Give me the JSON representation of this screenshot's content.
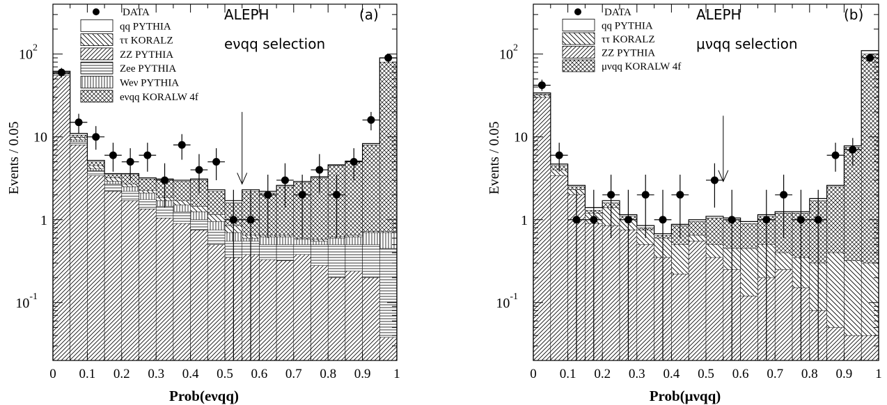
{
  "chart_data": [
    {
      "type": "histogram",
      "panel_label": "(a)",
      "experiment": "ALEPH",
      "selection": "eνqq selection",
      "xlabel": "Prob(eνqq)",
      "ylabel": "Events / 0.05",
      "yscale": "log",
      "xlim": [
        0,
        1
      ],
      "ylim": [
        0.02,
        400
      ],
      "x_ticks": [
        "0",
        "0.1",
        "0.2",
        "0.3",
        "0.4",
        "0.5",
        "0.6",
        "0.7",
        "0.8",
        "0.9",
        "1"
      ],
      "cut_value": 0.55,
      "bin_edges": [
        0,
        0.05,
        0.1,
        0.15,
        0.2,
        0.25,
        0.3,
        0.35,
        0.4,
        0.45,
        0.5,
        0.55,
        0.6,
        0.65,
        0.7,
        0.75,
        0.8,
        0.85,
        0.9,
        0.95,
        1.0
      ],
      "legend": [
        {
          "label": "DATA",
          "style": "dot"
        },
        {
          "label": "qq PYTHIA",
          "style": "blank"
        },
        {
          "label": "ττ KORALZ",
          "style": "diag-back"
        },
        {
          "label": "ZZ PYTHIA",
          "style": "diag-fwd"
        },
        {
          "label": "Zee PYTHIA",
          "style": "horiz"
        },
        {
          "label": "Weν PYTHIA",
          "style": "vert"
        },
        {
          "label": "eνqq KORALW 4f",
          "style": "cross"
        }
      ],
      "stack": [
        {
          "style": "diag-fwd",
          "cum": [
            55,
            8,
            3.4,
            2.2,
            1.7,
            1.35,
            1.05,
            0.9,
            0.75,
            0.5,
            0.35,
            0.38,
            0.33,
            0.32,
            0.38,
            0.28,
            0.2,
            0.24,
            0.2,
            0.038
          ]
        },
        {
          "style": "horiz",
          "cum": [
            57,
            8.7,
            3.9,
            2.7,
            2.2,
            1.75,
            1.45,
            1.25,
            1.0,
            0.75,
            0.55,
            0.55,
            0.5,
            0.5,
            0.5,
            0.5,
            0.5,
            0.5,
            0.5,
            0.45
          ]
        },
        {
          "style": "vert",
          "cum": [
            58,
            9.2,
            4.1,
            2.9,
            2.5,
            2.1,
            1.7,
            1.5,
            1.25,
            0.95,
            0.7,
            0.6,
            0.62,
            0.62,
            0.58,
            0.55,
            0.6,
            0.62,
            0.7,
            0.7
          ]
        },
        {
          "style": "diag-back",
          "cum": [
            59,
            9.8,
            4.5,
            3.2,
            2.7,
            2.25,
            1.85,
            1.7,
            1.45,
            1.15,
            0.85,
            0.65,
            0.65,
            0.65,
            0.6,
            0.58,
            0.62,
            0.65,
            0.72,
            0.72
          ]
        },
        {
          "style": "cross",
          "cum": [
            60,
            10.5,
            5.0,
            3.5,
            3.5,
            3.1,
            3.0,
            2.9,
            3.0,
            2.2,
            1.6,
            2.2,
            2.1,
            2.5,
            2.8,
            3.2,
            4.5,
            5.0,
            8.0,
            80
          ]
        },
        {
          "style": "blank",
          "cum": [
            62,
            11,
            5.2,
            3.6,
            3.6,
            3.2,
            3.1,
            3.0,
            3.1,
            2.3,
            1.7,
            2.3,
            2.2,
            2.6,
            2.9,
            3.3,
            4.6,
            5.1,
            8.3,
            90
          ]
        }
      ],
      "data_points": [
        {
          "x": 0.025,
          "y": 60,
          "lo": 52,
          "hi": 68
        },
        {
          "x": 0.075,
          "y": 15,
          "lo": 11,
          "hi": 19
        },
        {
          "x": 0.125,
          "y": 10,
          "lo": 7,
          "hi": 13.5
        },
        {
          "x": 0.175,
          "y": 6,
          "lo": 3.8,
          "hi": 8.5
        },
        {
          "x": 0.225,
          "y": 5,
          "lo": 3,
          "hi": 7.3
        },
        {
          "x": 0.275,
          "y": 6,
          "lo": 3.8,
          "hi": 8.5
        },
        {
          "x": 0.325,
          "y": 3,
          "lo": 1.4,
          "hi": 4.8
        },
        {
          "x": 0.375,
          "y": 8,
          "lo": 5.3,
          "hi": 10.8
        },
        {
          "x": 0.425,
          "y": 4,
          "lo": 2.1,
          "hi": 6.2
        },
        {
          "x": 0.475,
          "y": 5,
          "lo": 3,
          "hi": 7.3
        },
        {
          "x": 0.525,
          "y": 1,
          "lo": 0.02,
          "hi": 2.3
        },
        {
          "x": 0.575,
          "y": 1,
          "lo": 0.02,
          "hi": 2.3
        },
        {
          "x": 0.625,
          "y": 2,
          "lo": 0.6,
          "hi": 3.5
        },
        {
          "x": 0.675,
          "y": 3,
          "lo": 1.4,
          "hi": 4.8
        },
        {
          "x": 0.725,
          "y": 2,
          "lo": 0.6,
          "hi": 3.5
        },
        {
          "x": 0.775,
          "y": 4,
          "lo": 2.1,
          "hi": 6.2
        },
        {
          "x": 0.825,
          "y": 2,
          "lo": 0.6,
          "hi": 3.5
        },
        {
          "x": 0.875,
          "y": 5,
          "lo": 3,
          "hi": 7.3
        },
        {
          "x": 0.925,
          "y": 16,
          "lo": 12,
          "hi": 20
        },
        {
          "x": 0.975,
          "y": 90,
          "lo": 80,
          "hi": 100
        }
      ]
    },
    {
      "type": "histogram",
      "panel_label": "(b)",
      "experiment": "ALEPH",
      "selection": "μνqq selection",
      "xlabel": "Prob(μνqq)",
      "ylabel": "Events / 0.05",
      "yscale": "log",
      "xlim": [
        0,
        1
      ],
      "ylim": [
        0.02,
        400
      ],
      "x_ticks": [
        "0",
        "0.1",
        "0.2",
        "0.3",
        "0.4",
        "0.5",
        "0.6",
        "0.7",
        "0.8",
        "0.9",
        "1"
      ],
      "cut_value": 0.55,
      "bin_edges": [
        0,
        0.05,
        0.1,
        0.15,
        0.2,
        0.25,
        0.3,
        0.35,
        0.4,
        0.45,
        0.5,
        0.55,
        0.6,
        0.65,
        0.7,
        0.75,
        0.8,
        0.85,
        0.9,
        0.95,
        1.0
      ],
      "legend": [
        {
          "label": "DATA",
          "style": "dot"
        },
        {
          "label": "qq PYTHIA",
          "style": "blank"
        },
        {
          "label": "ττ KORALZ",
          "style": "diag-back"
        },
        {
          "label": "ZZ PYTHIA",
          "style": "diag-fwd"
        },
        {
          "label": "μνqq KORALW 4f",
          "style": "cross"
        }
      ],
      "stack": [
        {
          "style": "diag-fwd",
          "cum": [
            30,
            3.4,
            2.0,
            0.9,
            0.85,
            0.75,
            0.5,
            0.35,
            0.22,
            0.55,
            0.35,
            0.25,
            0.12,
            0.2,
            0.25,
            0.15,
            0.08,
            0.05,
            0.04,
            0.04
          ]
        },
        {
          "style": "diag-back",
          "cum": [
            32,
            4.0,
            2.3,
            1.2,
            1.4,
            1.0,
            0.75,
            0.6,
            0.5,
            0.65,
            0.5,
            0.45,
            0.45,
            0.5,
            0.4,
            0.35,
            0.3,
            0.4,
            0.32,
            0.3
          ]
        },
        {
          "style": "cross",
          "cum": [
            33,
            4.5,
            2.5,
            1.3,
            1.6,
            1.1,
            0.8,
            0.65,
            0.85,
            0.95,
            1.05,
            1.0,
            0.9,
            1.1,
            1.2,
            1.2,
            1.7,
            2.5,
            7.5,
            100
          ]
        },
        {
          "style": "blank",
          "cum": [
            34,
            4.7,
            2.6,
            1.4,
            1.7,
            1.15,
            0.85,
            0.68,
            0.88,
            1.0,
            1.1,
            1.05,
            0.95,
            1.15,
            1.25,
            1.25,
            1.8,
            2.6,
            7.8,
            110
          ]
        }
      ],
      "data_points": [
        {
          "x": 0.025,
          "y": 42,
          "lo": 36,
          "hi": 49
        },
        {
          "x": 0.075,
          "y": 6,
          "lo": 3.8,
          "hi": 8.5
        },
        {
          "x": 0.125,
          "y": 1,
          "lo": 0.02,
          "hi": 2.3
        },
        {
          "x": 0.175,
          "y": 1,
          "lo": 0.02,
          "hi": 2.3
        },
        {
          "x": 0.225,
          "y": 2,
          "lo": 0.6,
          "hi": 3.5
        },
        {
          "x": 0.275,
          "y": 1,
          "lo": 0.02,
          "hi": 2.3
        },
        {
          "x": 0.325,
          "y": 2,
          "lo": 0.6,
          "hi": 3.5
        },
        {
          "x": 0.375,
          "y": 1,
          "lo": 0.02,
          "hi": 2.3
        },
        {
          "x": 0.425,
          "y": 2,
          "lo": 0.6,
          "hi": 3.5
        },
        {
          "x": 0.525,
          "y": 3,
          "lo": 1.4,
          "hi": 4.8
        },
        {
          "x": 0.575,
          "y": 1,
          "lo": 0.02,
          "hi": 2.3
        },
        {
          "x": 0.675,
          "y": 1,
          "lo": 0.02,
          "hi": 2.3
        },
        {
          "x": 0.725,
          "y": 2,
          "lo": 0.6,
          "hi": 3.5
        },
        {
          "x": 0.775,
          "y": 1,
          "lo": 0.02,
          "hi": 2.3
        },
        {
          "x": 0.825,
          "y": 1,
          "lo": 0.02,
          "hi": 2.3
        },
        {
          "x": 0.875,
          "y": 6,
          "lo": 3.8,
          "hi": 8.5
        },
        {
          "x": 0.925,
          "y": 7,
          "lo": 4.5,
          "hi": 9.7
        },
        {
          "x": 0.975,
          "y": 90,
          "lo": 80,
          "hi": 100
        }
      ]
    }
  ]
}
